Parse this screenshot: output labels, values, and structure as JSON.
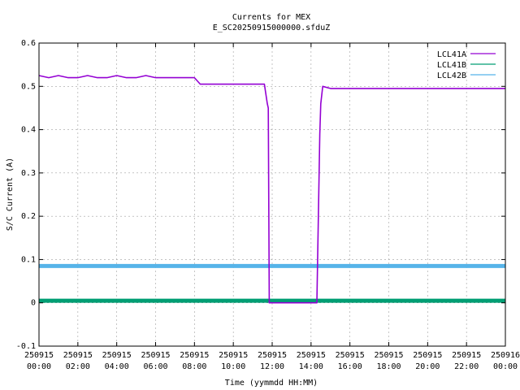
{
  "chart_data": {
    "type": "line",
    "title": "Currents for MEX",
    "subtitle": "E_SC20250915000000.sfduZ",
    "xlabel": "Time (yymmdd HH:MM)",
    "ylabel": "S/C Current (A)",
    "xlim": [
      0,
      24
    ],
    "ylim": [
      -0.1,
      0.6
    ],
    "grid": true,
    "legend_position": "top-right",
    "x_ticks": [
      {
        "value": 0,
        "date": "250915",
        "time": "00:00"
      },
      {
        "value": 2,
        "date": "250915",
        "time": "02:00"
      },
      {
        "value": 4,
        "date": "250915",
        "time": "04:00"
      },
      {
        "value": 6,
        "date": "250915",
        "time": "06:00"
      },
      {
        "value": 8,
        "date": "250915",
        "time": "08:00"
      },
      {
        "value": 10,
        "date": "250915",
        "time": "10:00"
      },
      {
        "value": 12,
        "date": "250915",
        "time": "12:00"
      },
      {
        "value": 14,
        "date": "250915",
        "time": "14:00"
      },
      {
        "value": 16,
        "date": "250915",
        "time": "16:00"
      },
      {
        "value": 18,
        "date": "250915",
        "time": "18:00"
      },
      {
        "value": 20,
        "date": "250915",
        "time": "20:00"
      },
      {
        "value": 22,
        "date": "250915",
        "time": "22:00"
      },
      {
        "value": 24,
        "date": "250916",
        "time": "00:00"
      }
    ],
    "y_ticks": [
      {
        "value": -0.1,
        "label": "-0.1"
      },
      {
        "value": 0,
        "label": "0"
      },
      {
        "value": 0.1,
        "label": "0.1"
      },
      {
        "value": 0.2,
        "label": "0.2"
      },
      {
        "value": 0.3,
        "label": "0.3"
      },
      {
        "value": 0.4,
        "label": "0.4"
      },
      {
        "value": 0.5,
        "label": "0.5"
      },
      {
        "value": 0.6,
        "label": "0.6"
      }
    ],
    "series": [
      {
        "name": "LCL41A",
        "color": "#9400d3",
        "x": [
          0,
          0.5,
          1,
          1.5,
          2,
          2.5,
          3,
          3.5,
          4,
          4.5,
          5,
          5.5,
          6,
          6.5,
          7,
          7.5,
          8,
          8.3,
          8.5,
          9,
          9.5,
          10,
          10.5,
          11,
          11.4,
          11.6,
          11.75,
          11.8,
          11.85,
          12,
          13,
          14,
          14.3,
          14.45,
          14.5,
          14.6,
          15,
          15.5,
          16,
          16.5,
          17,
          17.5,
          18,
          18.5,
          19,
          19.5,
          20,
          20.5,
          21,
          21.5,
          22,
          22.5,
          23,
          23.5,
          24
        ],
        "y": [
          0.525,
          0.52,
          0.525,
          0.52,
          0.52,
          0.525,
          0.52,
          0.52,
          0.525,
          0.52,
          0.52,
          0.525,
          0.52,
          0.52,
          0.52,
          0.52,
          0.52,
          0.505,
          0.505,
          0.505,
          0.505,
          0.505,
          0.505,
          0.505,
          0.505,
          0.505,
          0.46,
          0.45,
          0,
          0,
          0,
          0,
          0,
          0.39,
          0.46,
          0.5,
          0.495,
          0.495,
          0.495,
          0.495,
          0.495,
          0.495,
          0.495,
          0.495,
          0.495,
          0.495,
          0.495,
          0.495,
          0.495,
          0.495,
          0.495,
          0.495,
          0.495,
          0.495,
          0.495
        ]
      },
      {
        "name": "LCL41B",
        "color": "#009e73",
        "x": [
          0,
          24
        ],
        "y": [
          0.005,
          0.005
        ]
      },
      {
        "name": "LCL42B",
        "color": "#56b4e9",
        "x": [
          0,
          24
        ],
        "y": [
          0.085,
          0.085
        ]
      }
    ]
  }
}
